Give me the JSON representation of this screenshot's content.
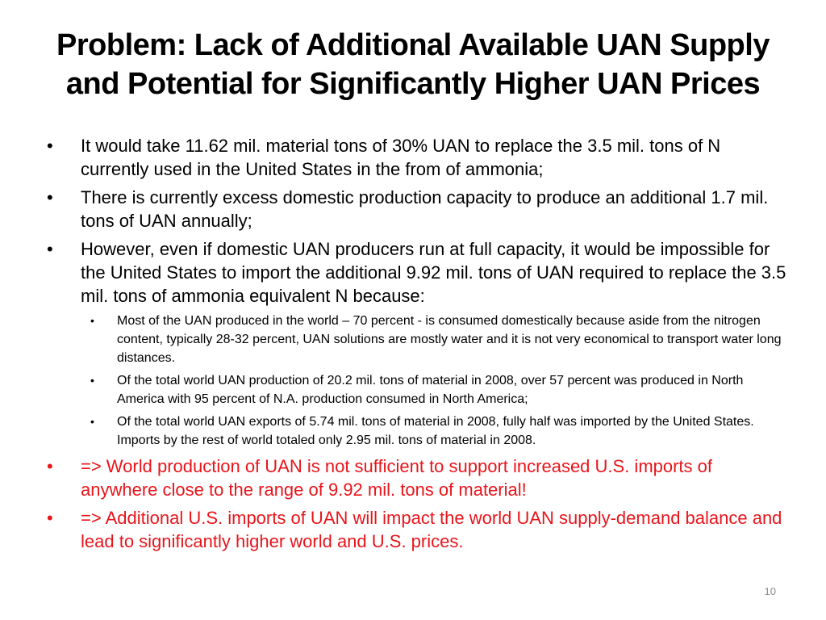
{
  "slide": {
    "title_lines": [
      "Problem: Lack of Additional Available UAN Supply",
      "and Potential for Significantly Higher UAN Prices"
    ],
    "bullet_symbol": "•",
    "bullets": [
      {
        "text": "It would take 11.62 mil. material tons of 30% UAN to replace the 3.5 mil. tons of N currently used in the United States in the from of ammonia;"
      },
      {
        "text": "There is currently excess domestic production capacity to produce an additional 1.7 mil. tons of UAN annually;"
      },
      {
        "text": "However, even if domestic UAN producers run at full capacity, it would be impossible for the United States to import the additional 9.92 mil. tons of UAN required to replace the 3.5 mil. tons of ammonia equivalent N because:",
        "subbullets": [
          "Most of the UAN produced in the world – 70 percent - is consumed domestically because aside from the nitrogen content, typically 28-32 percent, UAN solutions are mostly water and it is not very economical to transport water long distances.",
          "Of the total world UAN production of 20.2 mil. tons of material in 2008, over 57 percent was produced in North America with 95 percent of N.A. production consumed in North America;",
          "Of the total world UAN exports of 5.74 mil. tons of material in 2008, fully half was imported by the United States.  Imports by the rest of world totaled only 2.95 mil. tons of material in 2008."
        ]
      },
      {
        "text": "=>  World production of UAN is not sufficient to support increased U.S. imports of anywhere close to the range of 9.92 mil. tons of material!"
      },
      {
        "text": "=>  Additional U.S. imports of UAN will impact the world UAN supply-demand balance and lead to significantly higher world and U.S. prices."
      }
    ],
    "page_number": "10"
  },
  "colors": {
    "text": "#000000",
    "highlight_red": "#e8151b",
    "page_number": "#8a8a8a",
    "background": "#ffffff"
  }
}
